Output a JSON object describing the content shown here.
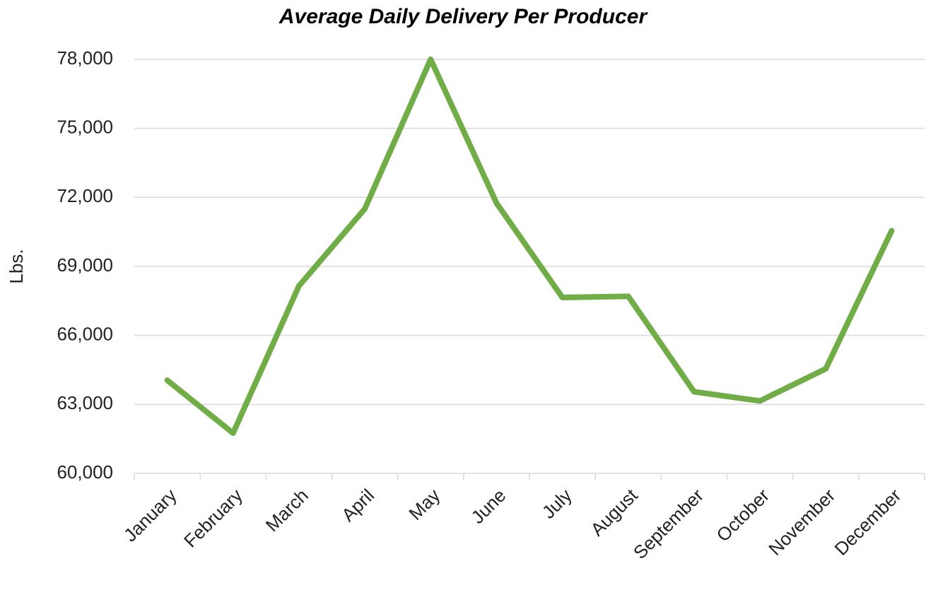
{
  "chart_data": {
    "type": "line",
    "title": "Average Daily Delivery Per Producer",
    "y_label": "Lbs.",
    "categories": [
      "January",
      "February",
      "March",
      "April",
      "May",
      "June",
      "July",
      "August",
      "September",
      "October",
      "November",
      "December"
    ],
    "values": [
      64050,
      61750,
      68150,
      71500,
      78000,
      71750,
      67650,
      67700,
      63550,
      63150,
      64550,
      70550
    ],
    "color": "#70ad47",
    "ylim": [
      60000,
      78000
    ],
    "yticks": [
      {
        "value": 60000,
        "label": "60,000"
      },
      {
        "value": 63000,
        "label": "63,000"
      },
      {
        "value": 66000,
        "label": "66,000"
      },
      {
        "value": 69000,
        "label": "69,000"
      },
      {
        "value": 72000,
        "label": "72,000"
      },
      {
        "value": 75000,
        "label": "75,000"
      },
      {
        "value": 78000,
        "label": "78,000"
      }
    ],
    "grid": true
  }
}
